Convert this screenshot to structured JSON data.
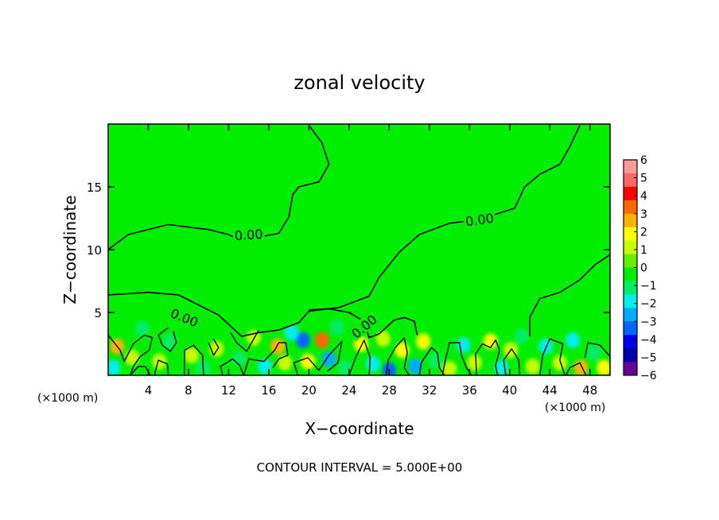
{
  "chart_data": {
    "type": "heatmap",
    "title": "zonal velocity",
    "xlabel": "X−coordinate",
    "ylabel": "Z−coordinate",
    "x_units_left": "(×1000 m)",
    "x_units_right": "(×1000 m)",
    "footer": "CONTOUR INTERVAL = 5.000E+00",
    "xlim": [
      0,
      50
    ],
    "ylim": [
      0,
      20
    ],
    "x_ticks": [
      4,
      8,
      12,
      16,
      20,
      24,
      28,
      32,
      36,
      40,
      44,
      48
    ],
    "y_ticks": [
      5,
      10,
      15
    ],
    "colorbar": {
      "min": -6,
      "max": 6,
      "ticks": [
        6,
        5,
        4,
        3,
        2,
        1,
        0,
        -1,
        -2,
        -3,
        -4,
        -5,
        -6
      ],
      "tick_labels": [
        "6",
        "5",
        "4",
        "3",
        "2",
        "1",
        "0",
        "−1",
        "−2",
        "−3",
        "−4",
        "−5",
        "−6"
      ],
      "colors": [
        "#ff9999",
        "#ff6666",
        "#ff0000",
        "#ff6600",
        "#ffb000",
        "#ffff00",
        "#c8ff00",
        "#66ee00",
        "#00ee00",
        "#00ee66",
        "#00eeee",
        "#00aaff",
        "#0066ff",
        "#0000ee",
        "#0000aa",
        "#660099"
      ]
    },
    "background_value": 0,
    "contour_label": "0.00",
    "contours": [
      [
        [
          0,
          10.0
        ],
        [
          2,
          11.2
        ],
        [
          6,
          12.0
        ],
        [
          10,
          11.6
        ],
        [
          12,
          11.2
        ],
        [
          13,
          10.8
        ],
        [
          15,
          11.0
        ],
        [
          17,
          11.3
        ],
        [
          18,
          12.6
        ],
        [
          18.4,
          14.4
        ],
        [
          19,
          15.0
        ],
        [
          21,
          15.4
        ],
        [
          22,
          16.8
        ],
        [
          21.3,
          18.5
        ],
        [
          20,
          19.9
        ]
      ],
      [
        [
          0,
          6.4
        ],
        [
          4,
          6.6
        ],
        [
          7,
          6.4
        ],
        [
          9,
          5.6
        ],
        [
          11,
          4.8
        ],
        [
          13.3,
          3.1
        ],
        [
          15,
          3.4
        ],
        [
          17,
          3.6
        ],
        [
          19,
          4.2
        ],
        [
          20,
          5.1
        ],
        [
          23,
          5.4
        ],
        [
          26,
          6.3
        ],
        [
          27,
          7.8
        ],
        [
          29,
          9.8
        ],
        [
          31,
          11.2
        ],
        [
          34,
          12.1
        ],
        [
          37,
          12.4
        ],
        [
          40.5,
          13.3
        ],
        [
          41.5,
          15.0
        ],
        [
          43,
          16.0
        ],
        [
          45,
          16.8
        ],
        [
          46,
          18.2
        ],
        [
          47,
          19.9
        ]
      ],
      [
        [
          20,
          5.2
        ],
        [
          22,
          5.3
        ],
        [
          24,
          5.0
        ],
        [
          25.5,
          4.3
        ],
        [
          26,
          3.0
        ],
        [
          27,
          3.3
        ],
        [
          28.5,
          4.4
        ],
        [
          29.5,
          4.6
        ],
        [
          30.5,
          4.3
        ],
        [
          30.8,
          3.2
        ]
      ],
      [
        [
          50,
          9.6
        ],
        [
          48.5,
          8.8
        ],
        [
          47,
          7.6
        ],
        [
          45,
          6.6
        ],
        [
          43,
          6.1
        ],
        [
          42,
          4.6
        ],
        [
          42,
          3.1
        ]
      ]
    ],
    "anomalies": [
      {
        "x": 0.9,
        "z": 2.3,
        "v": 2.5
      },
      {
        "x": 0.5,
        "z": 0.6,
        "v": -1.8
      },
      {
        "x": 2.4,
        "z": 1.4,
        "v": 1.2
      },
      {
        "x": 3.4,
        "z": 3.7,
        "v": -0.8
      },
      {
        "x": 5.1,
        "z": 1.1,
        "v": 1.4
      },
      {
        "x": 6.2,
        "z": 2.7,
        "v": -1.0
      },
      {
        "x": 8.3,
        "z": 1.6,
        "v": 1.3
      },
      {
        "x": 9.5,
        "z": 0.6,
        "v": -1.2
      },
      {
        "x": 10.8,
        "z": 2.1,
        "v": 1.5
      },
      {
        "x": 13.0,
        "z": 1.3,
        "v": -0.9
      },
      {
        "x": 14.5,
        "z": 3.0,
        "v": 1.1
      },
      {
        "x": 15.6,
        "z": 0.7,
        "v": -1.8
      },
      {
        "x": 16.9,
        "z": 2.3,
        "v": 2.8
      },
      {
        "x": 17.6,
        "z": 1.0,
        "v": 1.3
      },
      {
        "x": 18.3,
        "z": 3.4,
        "v": -1.6
      },
      {
        "x": 19.4,
        "z": 2.8,
        "v": -3.0
      },
      {
        "x": 19.9,
        "z": 1.1,
        "v": 1.7
      },
      {
        "x": 21.3,
        "z": 2.8,
        "v": 3.2
      },
      {
        "x": 22.0,
        "z": 1.3,
        "v": -2.6
      },
      {
        "x": 22.8,
        "z": 3.8,
        "v": -1.0
      },
      {
        "x": 23.6,
        "z": 0.6,
        "v": -1.4
      },
      {
        "x": 25.2,
        "z": 2.5,
        "v": 1.8
      },
      {
        "x": 26.4,
        "z": 0.9,
        "v": -2.2
      },
      {
        "x": 27.4,
        "z": 2.9,
        "v": 1.3
      },
      {
        "x": 28.0,
        "z": 0.4,
        "v": -3.0
      },
      {
        "x": 29.3,
        "z": 2.0,
        "v": 1.9
      },
      {
        "x": 30.6,
        "z": 0.7,
        "v": -2.7
      },
      {
        "x": 31.4,
        "z": 2.7,
        "v": 1.6
      },
      {
        "x": 32.6,
        "z": 1.2,
        "v": -1.4
      },
      {
        "x": 34.0,
        "z": 0.5,
        "v": 1.3
      },
      {
        "x": 35.4,
        "z": 2.4,
        "v": -1.6
      },
      {
        "x": 36.5,
        "z": 1.0,
        "v": 1.4
      },
      {
        "x": 38.1,
        "z": 2.7,
        "v": 2.1
      },
      {
        "x": 39.2,
        "z": 0.6,
        "v": -1.8
      },
      {
        "x": 40.1,
        "z": 2.0,
        "v": 1.4
      },
      {
        "x": 41.2,
        "z": 3.1,
        "v": -0.9
      },
      {
        "x": 42.3,
        "z": 0.7,
        "v": 1.2
      },
      {
        "x": 43.6,
        "z": 2.3,
        "v": -1.5
      },
      {
        "x": 45.0,
        "z": 1.0,
        "v": 1.1
      },
      {
        "x": 46.3,
        "z": 2.8,
        "v": -1.6
      },
      {
        "x": 47.1,
        "z": 0.6,
        "v": 2.6
      },
      {
        "x": 48.4,
        "z": 1.8,
        "v": -1.3
      },
      {
        "x": 49.4,
        "z": 0.6,
        "v": 2.0
      }
    ],
    "contour_loops": [
      [
        [
          0,
          3.2
        ],
        [
          1.2,
          2.0
        ],
        [
          1.6,
          1.1
        ],
        [
          2.5,
          2.5
        ],
        [
          3.6,
          3.2
        ],
        [
          4.4,
          3.0
        ],
        [
          4.1,
          2.0
        ],
        [
          3.2,
          1.5
        ],
        [
          2.5,
          0.7
        ],
        [
          2.2,
          0.0
        ]
      ],
      [
        [
          2.2,
          0.0
        ],
        [
          3.0,
          0.7
        ],
        [
          3.7,
          0.7
        ],
        [
          4.2,
          0.0
        ]
      ],
      [
        [
          4.6,
          0.0
        ],
        [
          5.0,
          1.2
        ],
        [
          5.9,
          0.9
        ],
        [
          6.0,
          0.0
        ]
      ],
      [
        [
          6.0,
          3.8
        ],
        [
          5.0,
          3.2
        ],
        [
          5.4,
          2.4
        ],
        [
          6.2,
          1.9
        ],
        [
          6.8,
          2.6
        ],
        [
          6.5,
          3.5
        ]
      ],
      [
        [
          7.6,
          0.0
        ],
        [
          7.6,
          2.0
        ],
        [
          8.5,
          2.4
        ],
        [
          9.4,
          1.6
        ],
        [
          9.5,
          0.0
        ]
      ],
      [
        [
          10.0,
          2.6
        ],
        [
          10.5,
          1.6
        ],
        [
          11.0,
          2.2
        ],
        [
          10.5,
          2.9
        ]
      ],
      [
        [
          11.4,
          0.0
        ],
        [
          11.2,
          0.7
        ],
        [
          12.4,
          1.3
        ],
        [
          13.1,
          0.8
        ],
        [
          13.5,
          0.0
        ]
      ],
      [
        [
          12.2,
          3.4
        ],
        [
          12.8,
          2.6
        ],
        [
          13.8,
          1.9
        ],
        [
          15.0,
          3.6
        ]
      ],
      [
        [
          13.5,
          0.0
        ],
        [
          14.0,
          1.3
        ],
        [
          15.5,
          1.1
        ],
        [
          16.6,
          2.0
        ],
        [
          17.0,
          2.6
        ],
        [
          17.7,
          2.6
        ],
        [
          17.9,
          1.6
        ],
        [
          17.0,
          1.3
        ],
        [
          16.4,
          0.6
        ]
      ],
      [
        [
          18.9,
          0.0
        ],
        [
          18.5,
          1.0
        ],
        [
          19.9,
          1.4
        ],
        [
          21.0,
          0.4
        ],
        [
          22.0,
          1.6
        ],
        [
          23.3,
          2.7
        ],
        [
          22.9,
          1.0
        ],
        [
          21.8,
          0.3
        ]
      ],
      [
        [
          24.0,
          0.0
        ],
        [
          24.7,
          1.5
        ],
        [
          25.5,
          2.8
        ],
        [
          26.1,
          1.4
        ],
        [
          26.0,
          0.0
        ]
      ],
      [
        [
          27.7,
          0.0
        ],
        [
          27.9,
          1.2
        ],
        [
          28.6,
          2.2
        ],
        [
          29.5,
          3.0
        ],
        [
          29.8,
          1.8
        ],
        [
          29.5,
          0.6
        ],
        [
          30.0,
          0.0
        ]
      ],
      [
        [
          31.0,
          0.0
        ],
        [
          31.2,
          1.0
        ],
        [
          32.2,
          2.2
        ],
        [
          32.8,
          1.8
        ],
        [
          33.0,
          0.6
        ],
        [
          33.5,
          0.0
        ]
      ],
      [
        [
          33.3,
          0.0
        ],
        [
          33.6,
          1.2
        ],
        [
          34.0,
          2.6
        ],
        [
          35.0,
          2.6
        ],
        [
          35.2,
          1.6
        ],
        [
          35.7,
          0.6
        ],
        [
          36.2,
          0.0
        ]
      ],
      [
        [
          36.7,
          0.0
        ],
        [
          36.6,
          1.7
        ],
        [
          37.3,
          2.5
        ],
        [
          38.1,
          2.2
        ],
        [
          38.6,
          2.8
        ],
        [
          39.0,
          2.0
        ],
        [
          38.6,
          0.8
        ],
        [
          38.8,
          0.0
        ]
      ],
      [
        [
          39.6,
          0.0
        ],
        [
          39.4,
          1.2
        ],
        [
          40.2,
          2.1
        ],
        [
          40.9,
          1.2
        ],
        [
          41.0,
          0.0
        ]
      ],
      [
        [
          43.0,
          0.0
        ],
        [
          43.3,
          1.6
        ],
        [
          44.0,
          2.9
        ],
        [
          45.3,
          2.5
        ],
        [
          45.0,
          1.2
        ],
        [
          45.5,
          0.0
        ]
      ],
      [
        [
          45.6,
          0.0
        ],
        [
          46.0,
          0.6
        ],
        [
          47.0,
          1.0
        ],
        [
          47.6,
          0.0
        ]
      ],
      [
        [
          47.5,
          1.4
        ],
        [
          47.8,
          2.6
        ],
        [
          49.0,
          2.4
        ],
        [
          50,
          1.5
        ]
      ]
    ],
    "contour_labels": [
      {
        "x": 14.0,
        "z": 11.2,
        "text": "0.00"
      },
      {
        "x": 37.0,
        "z": 12.4,
        "text": "0.00"
      },
      {
        "x": 7.6,
        "z": 4.6,
        "text": "0.00"
      },
      {
        "x": 25.5,
        "z": 3.9,
        "text": "0.00"
      }
    ]
  }
}
